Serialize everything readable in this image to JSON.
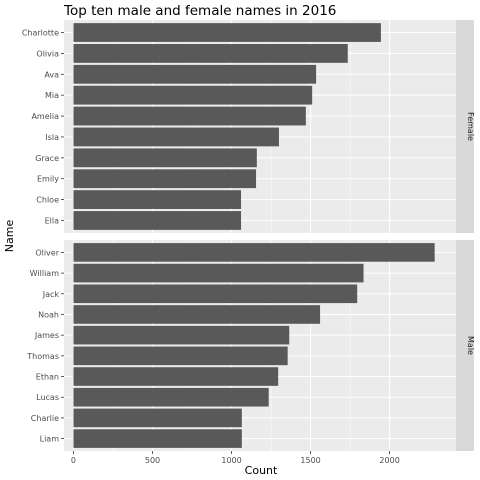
{
  "chart_data": {
    "type": "bar",
    "orientation": "horizontal",
    "title": "Top ten male and female names in 2016",
    "xlabel": "Count",
    "ylabel": "Name",
    "xlim": [
      -60,
      2420
    ],
    "x_ticks": [
      0,
      500,
      1000,
      1500,
      2000
    ],
    "grid": true,
    "legend": "none",
    "bar_color": "#595959",
    "panel_background": "#ebebeb",
    "strip_background": "#d9d9d9",
    "grid_color": "#ffffff",
    "facets": [
      {
        "label": "Female",
        "categories": [
          "Charlotte",
          "Olivia",
          "Ava",
          "Mia",
          "Amelia",
          "Isla",
          "Grace",
          "Emily",
          "Chloe",
          "Ella"
        ],
        "values": [
          1945,
          1735,
          1535,
          1510,
          1470,
          1300,
          1160,
          1155,
          1060,
          1060
        ]
      },
      {
        "label": "Male",
        "categories": [
          "Oliver",
          "William",
          "Jack",
          "Noah",
          "James",
          "Thomas",
          "Ethan",
          "Lucas",
          "Charlie",
          "Liam"
        ],
        "values": [
          2285,
          1835,
          1795,
          1560,
          1365,
          1355,
          1295,
          1235,
          1065,
          1065
        ]
      }
    ]
  }
}
